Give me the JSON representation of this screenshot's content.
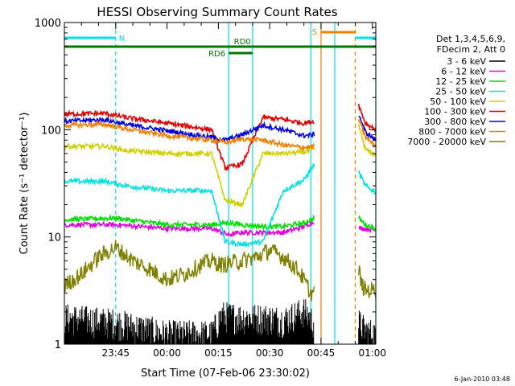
{
  "chart_data": {
    "type": "line",
    "title": "HESSI Observing Summary Count Rates",
    "xlabel": "Start Time (07-Feb-06 23:30:02)",
    "ylabel": "Count Rate (s⁻¹ detector⁻¹)",
    "ylog": true,
    "ylim": [
      1,
      1000
    ],
    "xlim_minutes": [
      0,
      91
    ],
    "x_ticks": [
      {
        "min": 15,
        "label": "23:45"
      },
      {
        "min": 30,
        "label": "00:00"
      },
      {
        "min": 45,
        "label": "00:15"
      },
      {
        "min": 60,
        "label": "00:30"
      },
      {
        "min": 75,
        "label": "00:45"
      },
      {
        "min": 90,
        "label": "01:00"
      }
    ],
    "y_ticks": [
      {
        "value": 1,
        "label": "1"
      },
      {
        "value": 10,
        "label": "10"
      },
      {
        "value": 100,
        "label": "100"
      },
      {
        "value": 1000,
        "label": "1000"
      }
    ],
    "legend": {
      "placement": "right",
      "header": [
        "Det 1,3,4,5,6,9,",
        "FDecim 2, Att 0"
      ]
    },
    "series": [
      {
        "name": "3 - 6 keV",
        "color": "#000000",
        "x": [
          0,
          15,
          30,
          43,
          46,
          52,
          58,
          64,
          70,
          73,
          75,
          80,
          85,
          86,
          88,
          91
        ],
        "y": [
          2,
          1.8,
          1.4,
          1.4,
          2.1,
          2,
          2,
          1.9,
          2.3,
          1.8,
          null,
          null,
          null,
          1.8,
          1.5,
          1.4
        ]
      },
      {
        "name": "6 - 12 keV",
        "color": "#e000e0",
        "x": [
          0,
          15,
          30,
          43,
          48,
          52,
          58,
          64,
          70,
          73,
          75,
          80,
          85,
          86,
          88,
          91
        ],
        "y": [
          13,
          13,
          12,
          12,
          10.5,
          11,
          11,
          11,
          12.5,
          14,
          null,
          null,
          null,
          12,
          12,
          11.5
        ]
      },
      {
        "name": "12 - 25 keV",
        "color": "#00e000",
        "x": [
          0,
          15,
          30,
          43,
          48,
          52,
          58,
          64,
          70,
          73,
          75,
          80,
          85,
          86,
          88,
          91
        ],
        "y": [
          14.5,
          15,
          13,
          13,
          13.5,
          13,
          12.5,
          12.5,
          13.5,
          15,
          null,
          null,
          null,
          15,
          13,
          12
        ]
      },
      {
        "name": "25 - 50 keV",
        "color": "#00e0e0",
        "x": [
          0,
          12,
          18,
          30,
          43,
          47,
          52,
          58,
          64,
          70,
          73,
          75,
          80,
          85,
          86,
          88,
          91
        ],
        "y": [
          33,
          33,
          30,
          27,
          27,
          9,
          8.5,
          9,
          27,
          34,
          47,
          null,
          null,
          null,
          40,
          30,
          26
        ]
      },
      {
        "name": "50 - 100 keV",
        "color": "#d0d000",
        "x": [
          0,
          12,
          18,
          30,
          43,
          47,
          52,
          58,
          64,
          70,
          73,
          75,
          80,
          85,
          86,
          88,
          91
        ],
        "y": [
          70,
          70,
          64,
          60,
          60,
          22,
          20,
          60,
          60,
          62,
          65,
          null,
          null,
          null,
          110,
          65,
          58
        ]
      },
      {
        "name": "100 - 300 keV",
        "color": "#e00000",
        "x": [
          0,
          12,
          18,
          30,
          43,
          47,
          52,
          58,
          64,
          70,
          73,
          75,
          80,
          85,
          86,
          88,
          91
        ],
        "y": [
          140,
          142,
          130,
          115,
          100,
          44,
          48,
          130,
          125,
          115,
          120,
          null,
          null,
          null,
          170,
          115,
          100
        ]
      },
      {
        "name": "300 - 800 keV",
        "color": "#0000e0",
        "x": [
          0,
          12,
          18,
          30,
          43,
          47,
          52,
          58,
          64,
          70,
          73,
          75,
          80,
          85,
          86,
          88,
          91
        ],
        "y": [
          120,
          124,
          112,
          98,
          85,
          80,
          90,
          110,
          100,
          88,
          90,
          null,
          null,
          null,
          140,
          95,
          80
        ]
      },
      {
        "name": "800 - 7000 keV",
        "color": "#f08000",
        "x": [
          0,
          12,
          18,
          30,
          43,
          47,
          52,
          58,
          64,
          70,
          73,
          75,
          80,
          85,
          86,
          88,
          91
        ],
        "y": [
          110,
          112,
          102,
          88,
          80,
          76,
          82,
          80,
          72,
          68,
          70,
          null,
          null,
          null,
          125,
          85,
          70
        ]
      },
      {
        "name": "7000 - 20000 keV",
        "color": "#808000",
        "x": [
          0,
          5,
          10,
          15,
          20,
          25,
          30,
          35,
          40,
          43,
          46,
          52,
          56,
          60,
          64,
          68,
          70,
          72,
          73,
          75,
          80,
          85,
          86,
          87,
          88,
          91
        ],
        "y": [
          3.5,
          4.5,
          6.5,
          8,
          6,
          5,
          4,
          4.5,
          5.5,
          6,
          5.5,
          6,
          6.5,
          7.5,
          6.5,
          5,
          4,
          3,
          3,
          null,
          null,
          null,
          5,
          3.5,
          3.2,
          3.2
        ]
      }
    ],
    "flags": [
      {
        "label": "N",
        "color": "#00e0f0",
        "segments": [
          [
            0,
            15
          ],
          [
            85,
            91
          ]
        ]
      },
      {
        "label": "RD0",
        "color": "#007700",
        "segments": [
          [
            0,
            91
          ]
        ]
      },
      {
        "label": "RD6",
        "color": "#007700",
        "segments": [
          [
            48,
            55
          ]
        ]
      },
      {
        "label": "S",
        "color": "#f08000",
        "segments": [
          [
            75,
            85
          ]
        ]
      }
    ],
    "markers": [
      {
        "min": 15,
        "color": "#00e0f0",
        "style": "dashed"
      },
      {
        "min": 48,
        "color": "#00e0f0",
        "style": "solid"
      },
      {
        "min": 55,
        "color": "#00e0f0",
        "style": "solid"
      },
      {
        "min": 72,
        "color": "#00e0f0",
        "style": "solid"
      },
      {
        "min": 75,
        "color": "#f08000",
        "style": "solid"
      },
      {
        "min": 79,
        "color": "#00e0f0",
        "style": "solid"
      },
      {
        "min": 85,
        "color": "#f08000",
        "style": "dashed"
      },
      {
        "min": 91,
        "color": "#00e0f0",
        "style": "dashed"
      }
    ]
  },
  "footer": {
    "timestamp": "6-Jan-2010 03:48"
  }
}
